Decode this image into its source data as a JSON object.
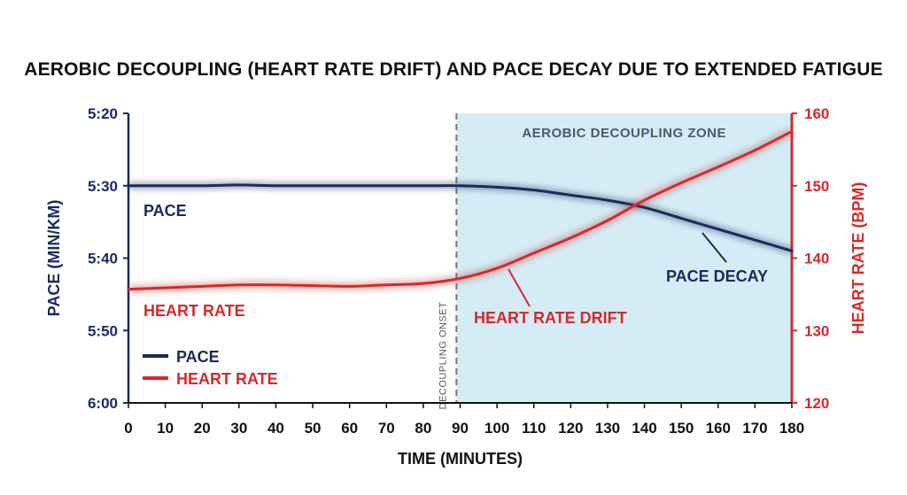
{
  "colors": {
    "pace": "#1b2a5c",
    "heart_rate": "#d42a2a",
    "zone_fill": "#d3ecf5",
    "onset_line": "#777777",
    "text": "#111111",
    "zone_text": "#4a5a6a"
  },
  "chart_data": {
    "type": "line",
    "title": "AEROBIC DECOUPLING (HEART RATE DRIFT) AND PACE DECAY DUE TO EXTENDED FATIGUE",
    "xlabel": "TIME (MINUTES)",
    "ylabel_left": "PACE (MIN/KM)",
    "ylabel_right": "HEART RATE (BPM)",
    "xlim": [
      0,
      180
    ],
    "x_ticks": [
      0,
      10,
      20,
      30,
      40,
      50,
      60,
      70,
      80,
      90,
      100,
      110,
      120,
      130,
      140,
      150,
      160,
      170,
      180
    ],
    "left_axis": {
      "range_seconds": [
        320,
        360
      ],
      "ticks": [
        {
          "label": "5:20",
          "seconds": 320
        },
        {
          "label": "5:30",
          "seconds": 330
        },
        {
          "label": "5:40",
          "seconds": 340
        },
        {
          "label": "5:50",
          "seconds": 350
        },
        {
          "label": "6:00",
          "seconds": 360
        }
      ]
    },
    "right_axis": {
      "range": [
        120,
        160
      ],
      "ticks": [
        120,
        130,
        140,
        150,
        160
      ]
    },
    "series": [
      {
        "name": "PACE",
        "axis": "left",
        "x": [
          0,
          10,
          20,
          30,
          40,
          50,
          60,
          70,
          80,
          90,
          100,
          110,
          120,
          130,
          140,
          150,
          160,
          170,
          180
        ],
        "y": [
          330,
          330,
          330,
          329.9,
          330,
          330,
          330,
          330,
          330,
          330,
          330.2,
          330.6,
          331.3,
          332,
          333,
          334.5,
          336,
          337.5,
          339
        ]
      },
      {
        "name": "HEART RATE",
        "axis": "right",
        "x": [
          0,
          10,
          20,
          30,
          40,
          50,
          60,
          70,
          80,
          90,
          100,
          110,
          120,
          130,
          140,
          150,
          160,
          170,
          180
        ],
        "y": [
          135.7,
          135.9,
          136.1,
          136.3,
          136.3,
          136.2,
          136.1,
          136.3,
          136.5,
          137.2,
          138.6,
          140.7,
          142.8,
          145.2,
          148,
          150.4,
          152.6,
          154.9,
          157.5
        ]
      }
    ],
    "shaded_region": {
      "x_start": 89,
      "x_end": 180,
      "label": "AEROBIC DECOUPLING ZONE"
    },
    "vertical_line": {
      "x": 89,
      "label": "DECOUPLING ONSET"
    },
    "annotations": {
      "pace_label": "PACE",
      "heart_rate_label": "HEART RATE",
      "heart_rate_drift": "HEART RATE DRIFT",
      "pace_decay": "PACE DECAY"
    },
    "legend": {
      "placement": "bottom-left",
      "entries": [
        "PACE",
        "HEART RATE"
      ]
    },
    "grid": false
  }
}
